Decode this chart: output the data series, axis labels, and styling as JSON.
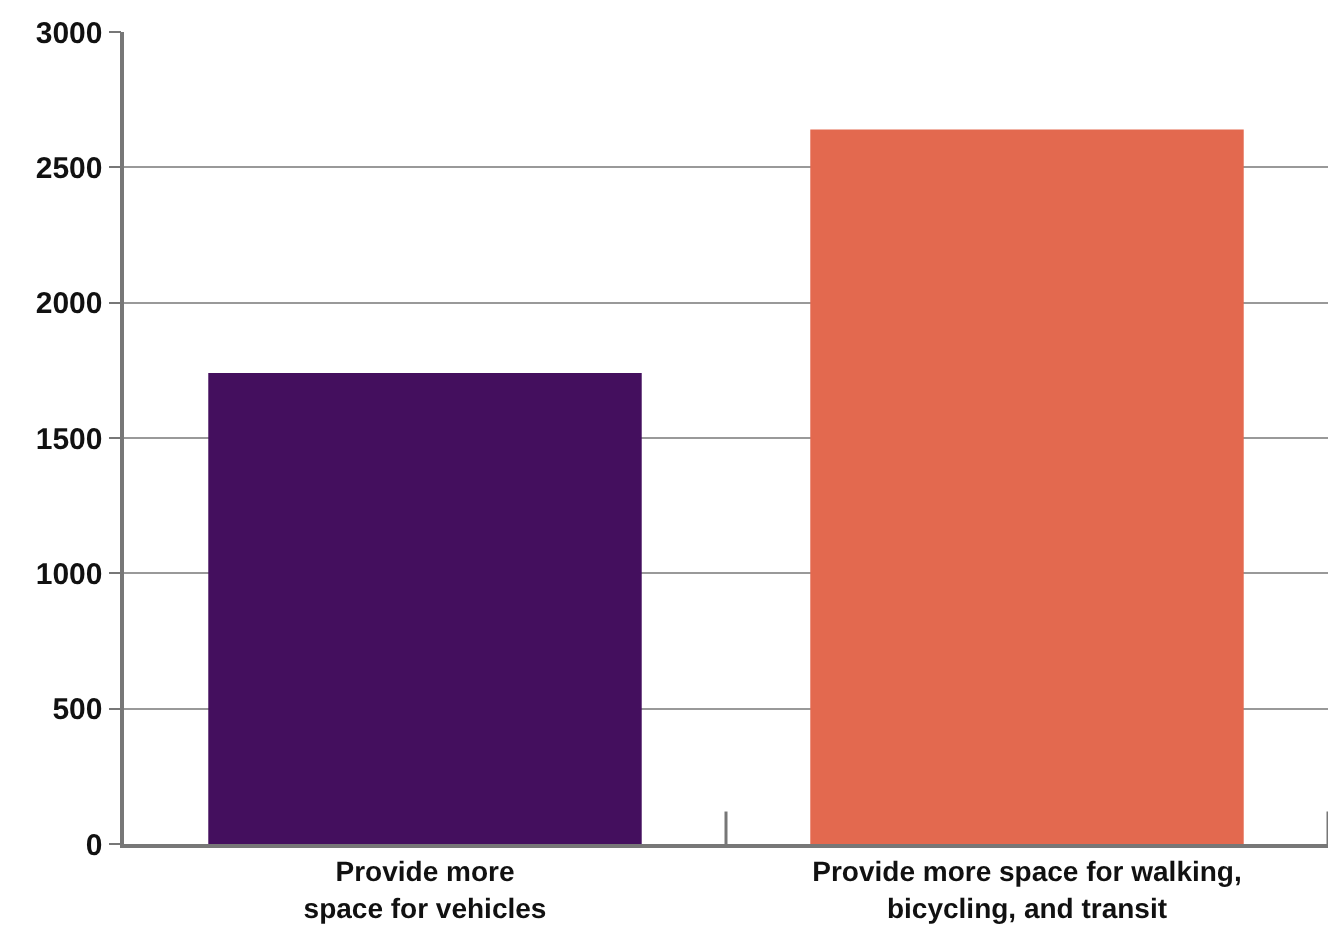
{
  "chart_data": {
    "type": "bar",
    "categories": [
      "Provide more\nspace for vehicles",
      "Provide more space for walking,\nbicycling, and transit"
    ],
    "colors": [
      "#440f5e",
      "#e3694f"
    ],
    "values": [
      1740,
      2640
    ],
    "ylim": [
      0,
      3000
    ],
    "yticks": [
      0,
      500,
      1000,
      1500,
      2000,
      2500,
      3000
    ],
    "grid": "y"
  }
}
